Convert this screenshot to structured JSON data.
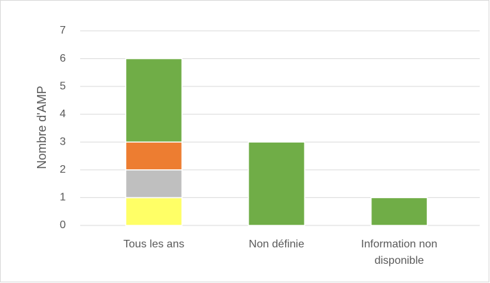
{
  "chart_data": {
    "type": "bar",
    "stacked": true,
    "y_label": "Nombre d'AMP",
    "categories": [
      "Tous les ans",
      "Non définie",
      "Information non disponible"
    ],
    "series": [
      {
        "color": "#ffff66",
        "values": [
          1,
          0,
          0
        ]
      },
      {
        "color": "#bfbfbf",
        "values": [
          1,
          0,
          0
        ]
      },
      {
        "color": "#ed7d31",
        "values": [
          1,
          0,
          0
        ]
      },
      {
        "color": "#70ad47",
        "values": [
          3,
          3,
          1
        ]
      }
    ],
    "ylim": [
      0,
      7
    ],
    "yticks": [
      0,
      1,
      2,
      3,
      4,
      5,
      6,
      7
    ],
    "grid": true
  }
}
